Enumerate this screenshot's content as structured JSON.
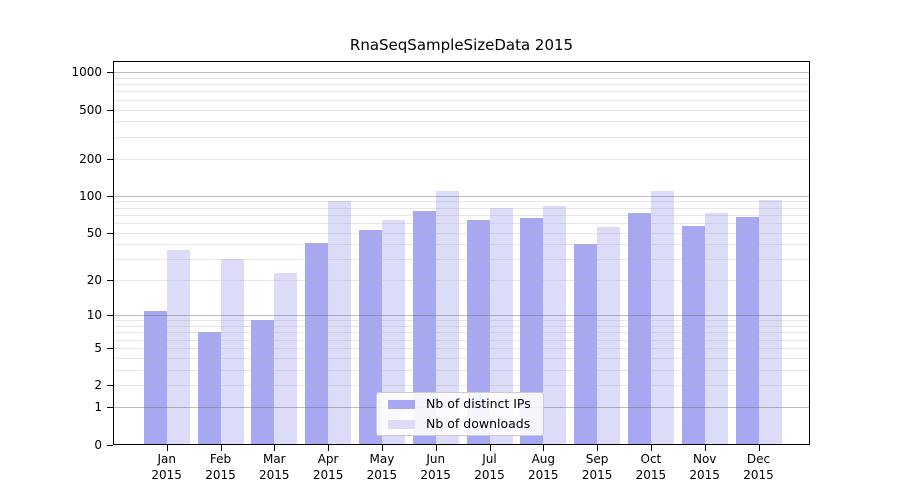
{
  "chart_data": {
    "type": "bar",
    "title": "RnaSeqSampleSizeData 2015",
    "categories": [
      "Jan",
      "Feb",
      "Mar",
      "Apr",
      "May",
      "Jun",
      "Jul",
      "Aug",
      "Sep",
      "Oct",
      "Nov",
      "Dec"
    ],
    "x_tick_year": "2015",
    "series": [
      {
        "name": "Nb of distinct IPs",
        "color": "#a8a8f2",
        "values": [
          11,
          7,
          9,
          41,
          53,
          75,
          64,
          66,
          40,
          73,
          57,
          67
        ]
      },
      {
        "name": "Nb of downloads",
        "color": "#dcdcf9",
        "values": [
          36,
          30,
          23,
          90,
          63,
          110,
          80,
          82,
          56,
          110,
          72,
          93
        ]
      }
    ],
    "y_axis": {
      "scale": "log10(value+1)",
      "tick_values": [
        1000,
        500,
        200,
        100,
        50,
        20,
        10,
        5,
        2,
        1,
        0
      ],
      "tick_labels": [
        "1000",
        "500",
        "200",
        "100",
        "50",
        "20",
        "10",
        "5",
        "2",
        "1",
        "0"
      ],
      "range": [
        0,
        1230
      ],
      "major_grid_values": [
        1,
        10,
        100,
        1000
      ],
      "minor_grid_values": [
        2,
        3,
        4,
        5,
        6,
        7,
        8,
        9,
        20,
        30,
        40,
        50,
        60,
        70,
        80,
        90,
        200,
        300,
        400,
        500,
        600,
        700,
        800,
        900
      ]
    },
    "legend": {
      "position": "inside-bottom-center",
      "entries": [
        "Nb of distinct IPs",
        "Nb of downloads"
      ]
    },
    "grid": {
      "visible": true,
      "drawn_over_bars": true
    },
    "background": "#ffffff",
    "frame_color": "#000000"
  }
}
